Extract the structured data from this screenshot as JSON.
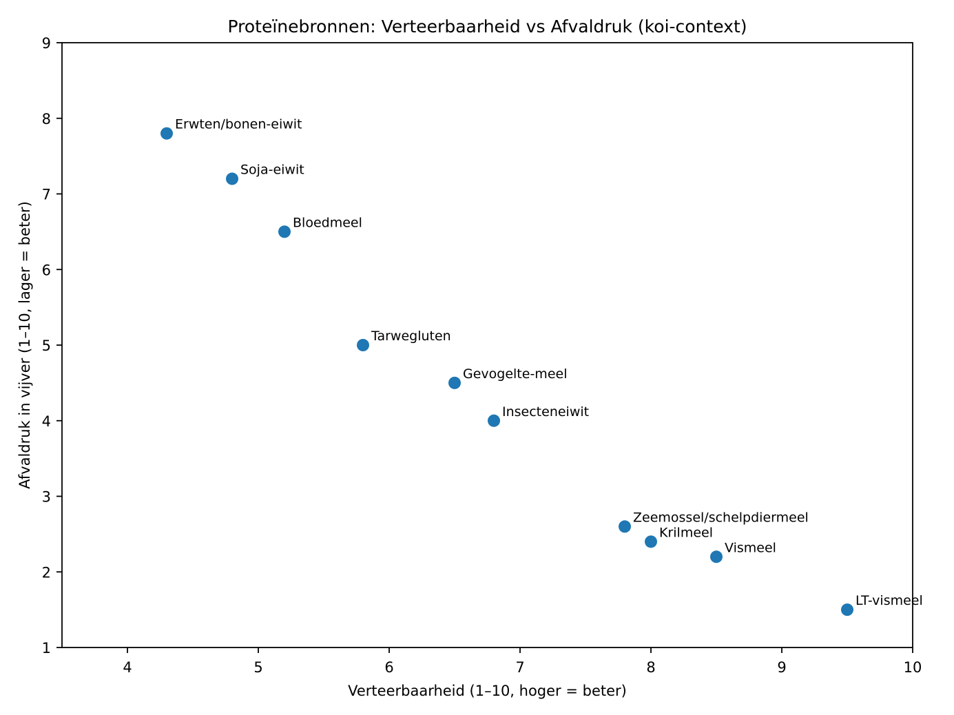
{
  "figure": {
    "title": "Proteïnebronnen: Verteerbaarheid vs Afvaldruk (koi-context)",
    "xlabel": "Verteerbaarheid (1–10, hoger = beter)",
    "ylabel": "Afvaldruk in vijver (1–10, lager = beter)"
  },
  "chart_data": {
    "type": "scatter",
    "title": "Proteïnebronnen: Verteerbaarheid vs Afvaldruk (koi-context)",
    "xlabel": "Verteerbaarheid (1–10, hoger = beter)",
    "ylabel": "Afvaldruk in vijver (1–10, lager = beter)",
    "xlim": [
      3.5,
      10
    ],
    "ylim": [
      1,
      9
    ],
    "xticks": [
      4,
      5,
      6,
      7,
      8,
      9,
      10
    ],
    "yticks": [
      1,
      2,
      3,
      4,
      5,
      6,
      7,
      8,
      9
    ],
    "grid": false,
    "legend": null,
    "marker_color": "#1f77b4",
    "text_color": "#000000",
    "points": [
      {
        "label": "Erwten/bonen-eiwit",
        "x": 4.3,
        "y": 7.8
      },
      {
        "label": "Soja-eiwit",
        "x": 4.8,
        "y": 7.2
      },
      {
        "label": "Bloedmeel",
        "x": 5.2,
        "y": 6.5
      },
      {
        "label": "Tarwegluten",
        "x": 5.8,
        "y": 5.0
      },
      {
        "label": "Gevogelte-meel",
        "x": 6.5,
        "y": 4.5
      },
      {
        "label": "Insecteneiwit",
        "x": 6.8,
        "y": 4.0
      },
      {
        "label": "Zeemossel/schelpdiermeel",
        "x": 7.8,
        "y": 2.6
      },
      {
        "label": "Krilmeel",
        "x": 8.0,
        "y": 2.4
      },
      {
        "label": "Vismeel",
        "x": 8.5,
        "y": 2.2
      },
      {
        "label": "LT-vismeel",
        "x": 9.5,
        "y": 1.5
      }
    ]
  }
}
